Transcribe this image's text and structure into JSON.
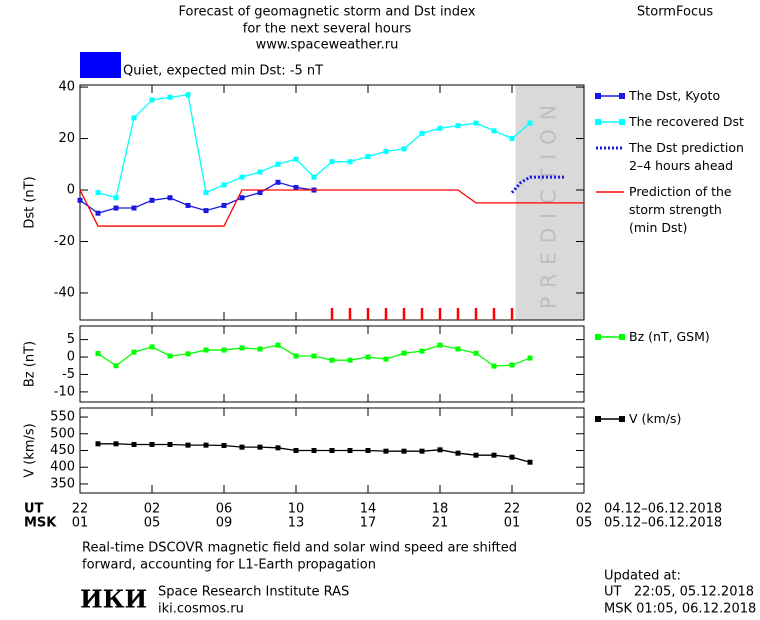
{
  "header": {
    "title_lines": [
      "Forecast of geomagnetic storm and Dst index",
      "for the next several hours",
      "www.spaceweather.ru"
    ],
    "brand": "StormFocus"
  },
  "time_axis": {
    "xlim": [
      0,
      28
    ],
    "rows": [
      {
        "name": "UT",
        "range": "04.12–06.12.2018",
        "ticks": [
          {
            "value": 0,
            "label": "22"
          },
          {
            "value": 4,
            "label": "02"
          },
          {
            "value": 8,
            "label": "06"
          },
          {
            "value": 12,
            "label": "10"
          },
          {
            "value": 16,
            "label": "14"
          },
          {
            "value": 20,
            "label": "18"
          },
          {
            "value": 24,
            "label": "22"
          },
          {
            "value": 28,
            "label": "02"
          }
        ]
      },
      {
        "name": "MSK",
        "range": "05.12–06.12.2018",
        "ticks": [
          {
            "value": 0,
            "label": "01"
          },
          {
            "value": 4,
            "label": "05"
          },
          {
            "value": 8,
            "label": "09"
          },
          {
            "value": 12,
            "label": "13"
          },
          {
            "value": 16,
            "label": "17"
          },
          {
            "value": 20,
            "label": "21"
          },
          {
            "value": 24,
            "label": "01"
          },
          {
            "value": 28,
            "label": "05"
          }
        ]
      }
    ]
  },
  "chart_data": [
    {
      "type": "line",
      "ylabel": "Dst (nT)",
      "ylim": [
        -50.5,
        40.8
      ],
      "yticks": [
        40,
        20,
        0,
        -20,
        -40
      ],
      "status": {
        "label": "Quiet, expected min Dst: -5 nT",
        "color": "#0000ff"
      },
      "prediction": {
        "label": "PREDICTION",
        "xlim": [
          24.2,
          28
        ],
        "color": "#d9d9d9"
      },
      "forecast_ticks": {
        "color": "#ff0000",
        "x": [
          14,
          15,
          16,
          17,
          18,
          19,
          20,
          21,
          22,
          23,
          24
        ]
      },
      "series": [
        {
          "name": "The Dst, Kyoto",
          "color": "#1a1adf",
          "style": "markers",
          "x": [
            0,
            1,
            2,
            3,
            4,
            5,
            6,
            7,
            8,
            9,
            10,
            11,
            12,
            13
          ],
          "values": [
            -4,
            -9,
            -7,
            -7,
            -4,
            -3,
            -6,
            -8,
            -6,
            -3,
            -1,
            3,
            1,
            0
          ]
        },
        {
          "name": "The recovered Dst",
          "color": "#00ffff",
          "style": "markers",
          "x": [
            1,
            2,
            3,
            4,
            5,
            6,
            7,
            8,
            9,
            10,
            11,
            12,
            13,
            14,
            15,
            16,
            17,
            18,
            19,
            20,
            21,
            22,
            23,
            24,
            25
          ],
          "values": [
            -1,
            -3,
            28,
            35,
            36,
            37,
            -1,
            2,
            5,
            7,
            10,
            12,
            5,
            11,
            11,
            13,
            15,
            16,
            22,
            24,
            25,
            26,
            23,
            20,
            26
          ]
        },
        {
          "name": "The Dst prediction\n2–4 hours ahead",
          "color": "#1a1adf",
          "style": "dotted",
          "x": [
            24,
            24.5,
            25,
            27
          ],
          "values": [
            -1,
            3,
            5,
            5
          ]
        },
        {
          "name": "Prediction of the\nstorm strength\n(min Dst)",
          "color": "#ff0000",
          "style": "line",
          "x": [
            0,
            1,
            8,
            9,
            21,
            22,
            28
          ],
          "values": [
            0,
            -14,
            -14,
            0,
            0,
            -5,
            -5
          ]
        }
      ]
    },
    {
      "type": "line",
      "ylabel": "Bz (nT)",
      "ylim": [
        -12.9,
        8.9
      ],
      "yticks": [
        5,
        0,
        -5,
        -10
      ],
      "series": [
        {
          "name": "Bz (nT, GSM)",
          "color": "#00ff00",
          "style": "markers",
          "x": [
            1,
            2,
            3,
            4,
            5,
            6,
            7,
            8,
            9,
            10,
            11,
            12,
            13,
            14,
            15,
            16,
            17,
            18,
            19,
            20,
            21,
            22,
            23,
            24,
            25
          ],
          "values": [
            1,
            -2.5,
            1.4,
            2.9,
            0.3,
            0.9,
            2,
            2,
            2.6,
            2.3,
            3.4,
            0.3,
            0.3,
            -0.9,
            -0.9,
            0,
            -0.6,
            1.1,
            1.7,
            3.4,
            2.3,
            1.1,
            -2.6,
            -2.3,
            -0.3
          ]
        }
      ]
    },
    {
      "type": "line",
      "ylabel": "V (km/s)",
      "ylim": [
        323,
        577
      ],
      "yticks": [
        550,
        500,
        450,
        400,
        350
      ],
      "series": [
        {
          "name": "V (km/s)",
          "color": "#000000",
          "style": "markers",
          "x": [
            1,
            2,
            3,
            4,
            5,
            6,
            7,
            8,
            9,
            10,
            11,
            12,
            13,
            14,
            15,
            16,
            17,
            18,
            19,
            20,
            21,
            22,
            23,
            24,
            25
          ],
          "values": [
            470,
            470,
            468,
            468,
            468,
            466,
            466,
            465,
            460,
            460,
            458,
            450,
            450,
            450,
            450,
            450,
            448,
            448,
            448,
            452,
            442,
            436,
            436,
            430,
            415
          ]
        }
      ]
    }
  ],
  "footer": {
    "note_lines": [
      "Real-time DSCOVR magnetic field and solar wind speed are shifted",
      "forward, accounting for L1-Earth propagation"
    ],
    "logo": "ИКИ",
    "institute": "Space Research Institute RAS",
    "site": "iki.cosmos.ru",
    "updated_lines": [
      "Updated at:",
      "UT   22:05, 05.12.2018",
      "MSK 01:05, 06.12.2018"
    ]
  }
}
